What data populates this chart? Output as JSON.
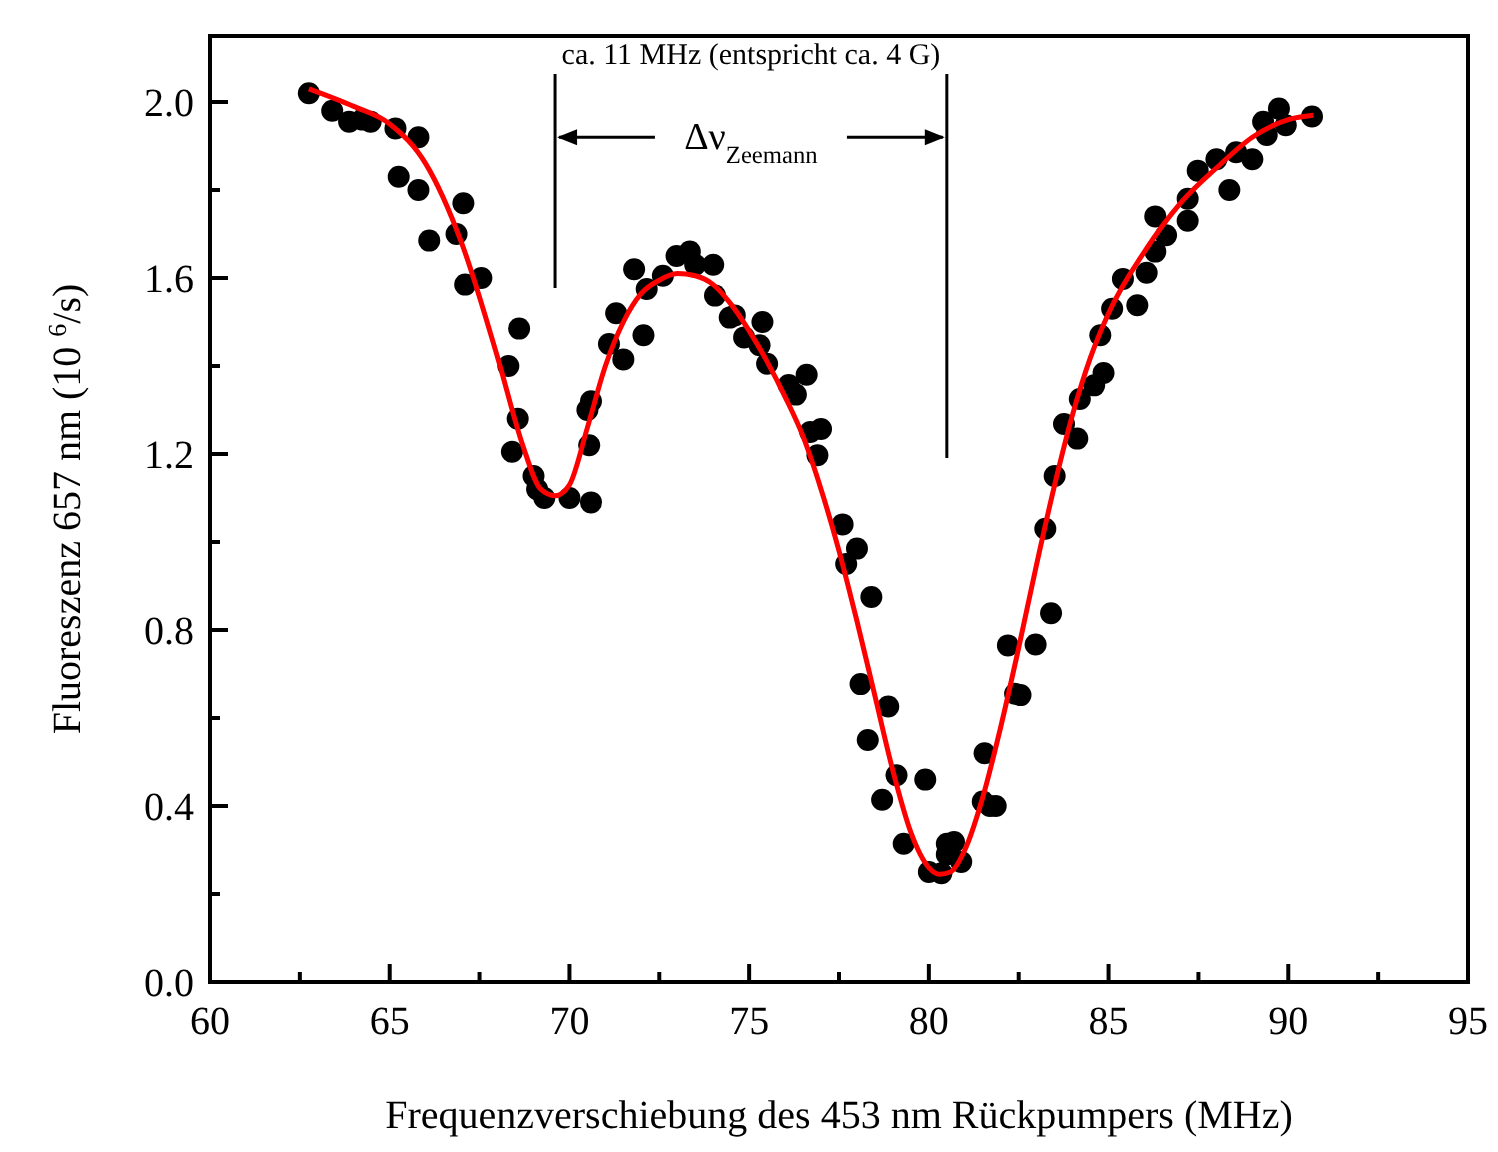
{
  "chart_data": {
    "type": "scatter",
    "xlabel": "Frequenzverschiebung des 453 nm Rückpumpers (MHz)",
    "ylabel": "Fluoreszenz 657 nm (10 $^{6}$/s)",
    "xlim": [
      60,
      95
    ],
    "ylim": [
      0,
      2.15
    ],
    "xticks": [
      60,
      {
        "value": 62.5,
        "label": null
      },
      65,
      {
        "value": 67.5,
        "label": null
      },
      70,
      {
        "value": 72.5,
        "label": null
      },
      75,
      {
        "value": 77.5,
        "label": null
      },
      80,
      {
        "value": 82.5,
        "label": null
      },
      85,
      {
        "value": 87.5,
        "label": null
      },
      90,
      {
        "value": 92.5,
        "label": null
      },
      95
    ],
    "yticks": [
      {
        "value": 0,
        "label": "0.0"
      },
      {
        "value": 0.2,
        "label": null
      },
      {
        "value": 0.4,
        "label": "0.4"
      },
      {
        "value": 0.6,
        "label": null
      },
      {
        "value": 0.8,
        "label": "0.8"
      },
      {
        "value": 1.0,
        "label": null
      },
      {
        "value": 1.2,
        "label": "1.2"
      },
      {
        "value": 1.4,
        "label": null
      },
      {
        "value": 1.6,
        "label": "1.6"
      },
      {
        "value": 1.8,
        "label": null
      },
      {
        "value": 2.0,
        "label": "2.0"
      }
    ],
    "grid": false,
    "ref_lines": [
      {
        "axis": "x",
        "value": 69.6,
        "color": "#000000"
      },
      {
        "axis": "x",
        "value": 80.5,
        "color": "#000000"
      }
    ],
    "annotations": [
      "ca. 11 MHz (entspricht ca. 4 G)",
      {
        "text": "Δν$_{Zeemann}$",
        "x": 80.5,
        "y": 1.92
      }
    ],
    "series": [
      {
        "type": "scatter",
        "marker": "circle",
        "color": "#000000",
        "x": [
          62.75,
          63.4,
          63.87,
          64.24,
          64.47,
          65.16,
          65.8,
          65.25,
          65.8,
          66.1,
          67.05,
          66.86,
          67.1,
          67.55,
          68.6,
          68.3,
          68.56,
          68.4,
          69.0,
          69.1,
          69.3,
          70.0,
          70.6,
          70.55,
          70.5,
          70.6,
          71.3,
          71.1,
          71.5,
          71.8,
          72.06,
          72.15,
          72.6,
          72.98,
          73.35,
          73.5,
          74.0,
          74.05,
          74.46,
          74.6,
          74.86,
          75.37,
          75.29,
          75.5,
          76.1,
          76.6,
          76.3,
          76.7,
          77.0,
          76.9,
          77.6,
          78.0,
          77.7,
          78.4,
          78.1,
          78.87,
          78.3,
          79.1,
          78.7,
          79.3,
          80.0,
          80.35,
          80.5,
          80.5,
          79.9,
          80.9,
          81.5,
          81.55,
          81.7,
          80.7,
          81.86,
          82.4,
          82.55,
          82.2,
          82.97,
          83.4,
          83.24,
          83.5,
          83.76,
          84.13,
          84.2,
          84.6,
          84.86,
          84.77,
          85.1,
          85.4,
          85.8,
          86.06,
          86.3,
          86.3,
          86.6,
          87.2,
          87.2,
          87.48,
          88.0,
          88.36,
          88.55,
          89.0,
          89.3,
          89.74,
          89.4,
          89.93,
          90.66
        ],
        "values": [
          2.02,
          1.98,
          1.955,
          1.96,
          1.955,
          1.94,
          1.92,
          1.83,
          1.8,
          1.685,
          1.77,
          1.7,
          1.585,
          1.6,
          1.485,
          1.4,
          1.28,
          1.205,
          1.15,
          1.12,
          1.1,
          1.1,
          1.09,
          1.22,
          1.3,
          1.32,
          1.52,
          1.45,
          1.415,
          1.62,
          1.47,
          1.575,
          1.605,
          1.65,
          1.66,
          1.63,
          1.63,
          1.56,
          1.51,
          1.515,
          1.465,
          1.5,
          1.447,
          1.405,
          1.357,
          1.38,
          1.335,
          1.25,
          1.257,
          1.197,
          1.04,
          0.985,
          0.95,
          0.875,
          0.677,
          0.626,
          0.55,
          0.47,
          0.414,
          0.314,
          0.25,
          0.247,
          0.314,
          0.29,
          0.46,
          0.273,
          0.41,
          0.52,
          0.4,
          0.318,
          0.4,
          0.655,
          0.652,
          0.765,
          0.767,
          0.838,
          1.03,
          1.15,
          1.268,
          1.235,
          1.325,
          1.356,
          1.384,
          1.47,
          1.53,
          1.598,
          1.538,
          1.612,
          1.66,
          1.74,
          1.697,
          1.78,
          1.73,
          1.844,
          1.87,
          1.8,
          1.886,
          1.87,
          1.955,
          1.985,
          1.925,
          1.947,
          1.967
        ]
      },
      {
        "type": "line",
        "line_style": "solid",
        "color": "#ff0000",
        "x": [
          62.75,
          64,
          65,
          66,
          67,
          68,
          68.7,
          69.2,
          69.6,
          70,
          70.5,
          71,
          71.5,
          72,
          72.5,
          73,
          73.5,
          74,
          74.5,
          75,
          75.5,
          76,
          76.5,
          77,
          77.5,
          78,
          78.5,
          79,
          79.5,
          80,
          80.3,
          80.6,
          81,
          81.5,
          82,
          82.5,
          83,
          83.5,
          84,
          84.5,
          85,
          86,
          87,
          88,
          89,
          90,
          90.7
        ],
        "values": [
          2.03,
          1.99,
          1.95,
          1.86,
          1.68,
          1.42,
          1.22,
          1.12,
          1.105,
          1.13,
          1.26,
          1.4,
          1.5,
          1.565,
          1.595,
          1.61,
          1.605,
          1.585,
          1.54,
          1.48,
          1.41,
          1.33,
          1.24,
          1.12,
          0.98,
          0.82,
          0.65,
          0.48,
          0.34,
          0.26,
          0.245,
          0.25,
          0.3,
          0.42,
          0.58,
          0.76,
          0.95,
          1.13,
          1.29,
          1.42,
          1.52,
          1.66,
          1.77,
          1.85,
          1.92,
          1.96,
          1.97
        ]
      }
    ]
  }
}
